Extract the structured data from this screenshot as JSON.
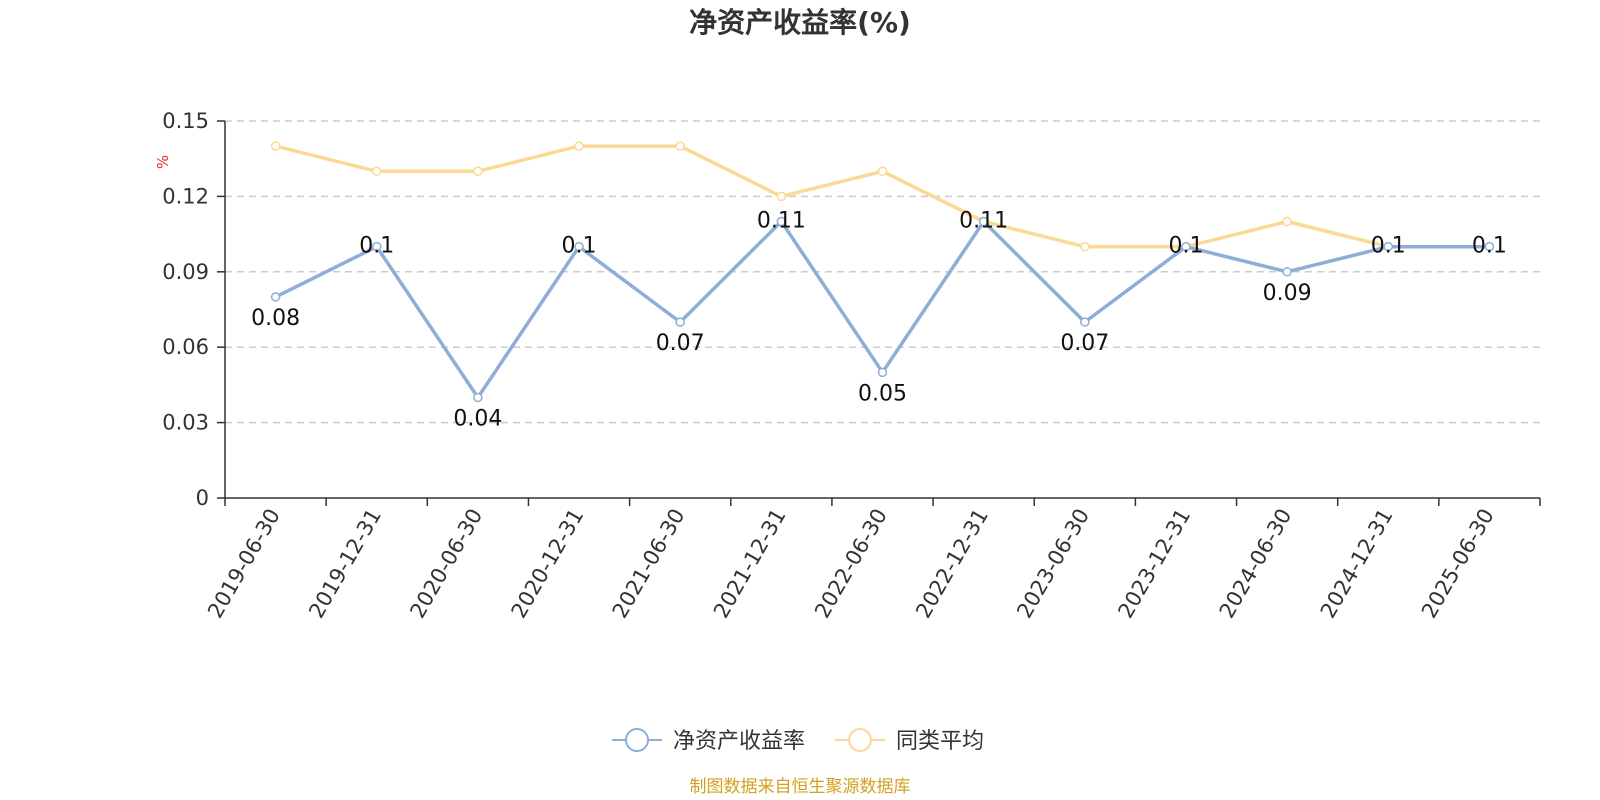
{
  "chart_data": {
    "type": "line",
    "title": "净资产收益率(%)",
    "ylabel": "%",
    "xlabel": "",
    "categories": [
      "2019-06-30",
      "2019-12-31",
      "2020-06-30",
      "2020-12-31",
      "2021-06-30",
      "2021-12-31",
      "2022-06-30",
      "2022-12-31",
      "2023-06-30",
      "2023-12-31",
      "2024-06-30",
      "2024-12-31",
      "2025-06-30"
    ],
    "y_ticks": [
      "0",
      "0.03",
      "0.06",
      "0.09",
      "0.12",
      "0.15"
    ],
    "ylim": [
      0,
      0.15
    ],
    "grid": true,
    "legend_position": "bottom",
    "series": [
      {
        "name": "净资产收益率",
        "color": "#8eaed8",
        "values": [
          0.08,
          0.1,
          0.04,
          0.1,
          0.07,
          0.11,
          0.05,
          0.11,
          0.07,
          0.1,
          0.09,
          0.1,
          0.1
        ],
        "labels": [
          "0.08",
          "0.1",
          "0.04",
          "0.1",
          "0.07",
          "0.11",
          "0.05",
          "0.11",
          "0.07",
          "0.1",
          "0.09",
          "0.1",
          "0.1"
        ]
      },
      {
        "name": "同类平均",
        "color": "#fad996",
        "values": [
          0.14,
          0.13,
          0.13,
          0.14,
          0.14,
          0.12,
          0.13,
          0.11,
          0.1,
          0.1,
          0.11,
          0.1,
          0.1
        ]
      }
    ]
  },
  "source": "制图数据来自恒生聚源数据库"
}
